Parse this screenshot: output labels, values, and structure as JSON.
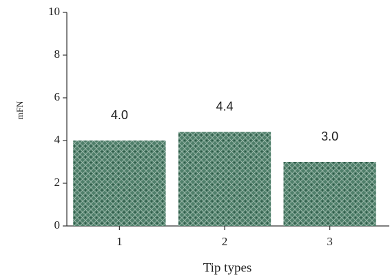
{
  "chart_data": {
    "type": "bar",
    "x_label": "Tip types",
    "y_label": "mFN",
    "categories": [
      "1",
      "2",
      "3"
    ],
    "values": [
      4.0,
      4.4,
      3.0
    ],
    "value_labels": [
      "4.0",
      "4.4",
      "3.0"
    ],
    "color": "#4f7f6a",
    "ylim": [
      0,
      10
    ],
    "yticks": [
      0,
      2,
      4,
      6,
      8,
      10
    ]
  }
}
